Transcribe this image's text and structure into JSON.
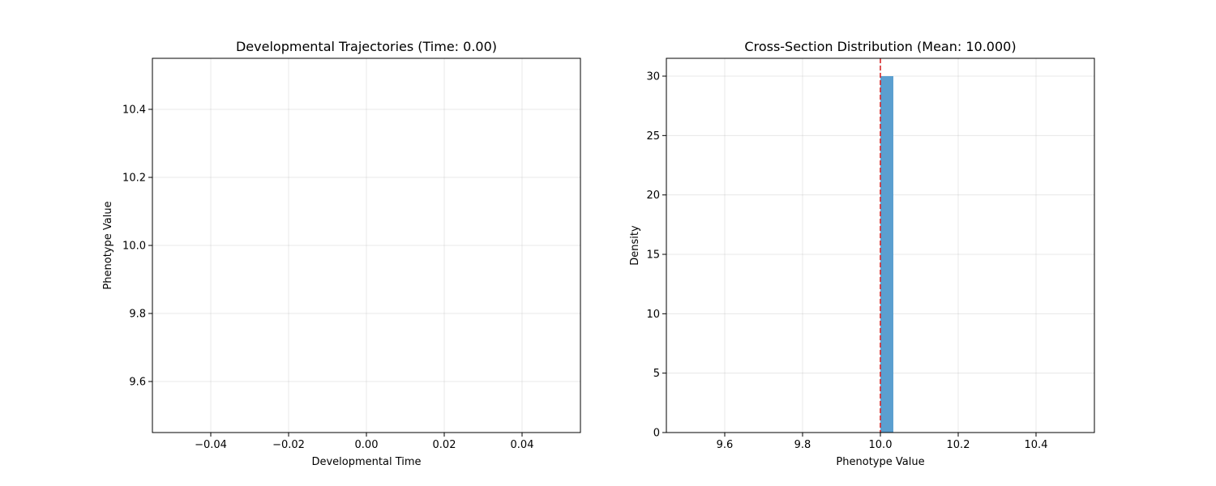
{
  "chart_data": [
    {
      "type": "line",
      "title": "Developmental Trajectories (Time: 0.00)",
      "xlabel": "Developmental Time",
      "ylabel": "Phenotype Value",
      "xlim": [
        -0.055,
        0.055
      ],
      "ylim": [
        9.45,
        10.55
      ],
      "xticks": [
        -0.04,
        -0.02,
        0.0,
        0.02,
        0.04
      ],
      "xtick_labels": [
        "−0.04",
        "−0.02",
        "0.00",
        "0.02",
        "0.04"
      ],
      "yticks": [
        9.6,
        9.8,
        10.0,
        10.2,
        10.4
      ],
      "ytick_labels": [
        "9.6",
        "9.8",
        "10.0",
        "10.2",
        "10.4"
      ],
      "grid": true,
      "series": []
    },
    {
      "type": "bar",
      "title": "Cross-Section Distribution (Mean: 10.000)",
      "xlabel": "Phenotype Value",
      "ylabel": "Density",
      "xlim": [
        9.45,
        10.55
      ],
      "ylim": [
        0,
        31.5
      ],
      "xticks": [
        9.6,
        9.8,
        10.0,
        10.2,
        10.4
      ],
      "xtick_labels": [
        "9.6",
        "9.8",
        "10.0",
        "10.2",
        "10.4"
      ],
      "yticks": [
        0,
        5,
        10,
        15,
        20,
        25,
        30
      ],
      "ytick_labels": [
        "0",
        "5",
        "10",
        "15",
        "20",
        "25",
        "30"
      ],
      "grid": true,
      "bins": [
        {
          "x0": 10.0,
          "x1": 10.0333,
          "value": 30
        }
      ],
      "bar_color": "#5b9fd0",
      "mean_line": {
        "x": 10.0,
        "color": "#d62728",
        "style": "dashed"
      }
    }
  ]
}
